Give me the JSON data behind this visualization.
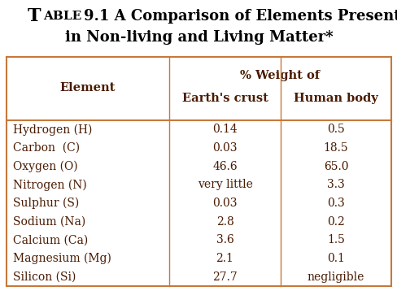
{
  "title_part1": "T",
  "title_part2": "ABLE",
  "title_part3": " 9.1 A Comparison of Elements Present",
  "title_line2": "in Non-living and Living Matter*",
  "col1_header": "Element",
  "col2_header": "% Weight of",
  "col2_sub1": "Earth's crust",
  "col2_sub2": "Human body",
  "rows": [
    [
      "Hydrogen (H)",
      "0.14",
      "0.5"
    ],
    [
      "Carbon  (C)",
      "0.03",
      "18.5"
    ],
    [
      "Oxygen (O)",
      "46.6",
      "65.0"
    ],
    [
      "Nitrogen (N)",
      "very little",
      "3.3"
    ],
    [
      "Sulphur (S)",
      "0.03",
      "0.3"
    ],
    [
      "Sodium (Na)",
      "2.8",
      "0.2"
    ],
    [
      "Calcium (Ca)",
      "3.6",
      "1.5"
    ],
    [
      "Magnesium (Mg)",
      "2.1",
      "0.1"
    ],
    [
      "Silicon (Si)",
      "27.7",
      "negligible"
    ]
  ],
  "table_bg": "#F5C59A",
  "border_color": "#C8783A",
  "title_bg": "#FFFFFF",
  "text_color": "#4A1A00",
  "title_color": "#000000",
  "header_fontsize": 10.5,
  "data_fontsize": 10,
  "title_fontsize_big": 16,
  "title_fontsize_small": 11,
  "title_fontsize_rest": 13
}
